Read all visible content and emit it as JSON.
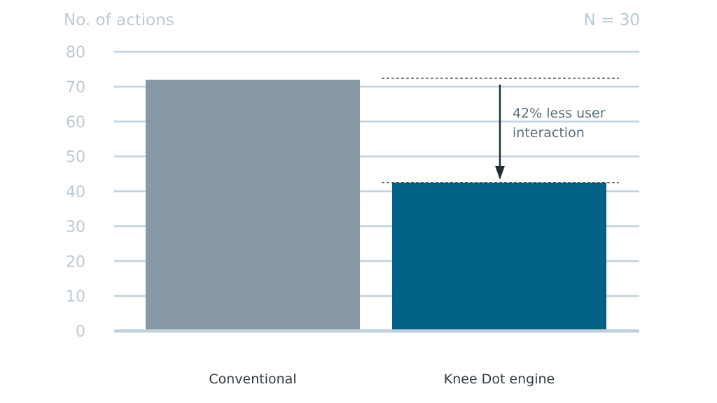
{
  "chart_data": {
    "type": "bar",
    "ylabel": "No. of actions",
    "sample_note": "N = 30",
    "categories": [
      "Conventional",
      "Knee Dot engine"
    ],
    "values": [
      72,
      42.5
    ],
    "bar_colors": [
      "#8899a6",
      "#006185"
    ],
    "ylim": [
      0,
      80
    ],
    "yticks": [
      0,
      10,
      20,
      30,
      40,
      50,
      60,
      70,
      80
    ],
    "grid": true,
    "annotation": {
      "line1": "42%  less user",
      "line2": "interaction",
      "from_value": 72,
      "to_value": 42.5
    }
  },
  "colors": {
    "grid": "#c3d1da",
    "axis_text": "#bccad3",
    "category_text": "#333b40",
    "annotation_text": "#5a6f7c",
    "arrow": "#1e2f3a"
  }
}
